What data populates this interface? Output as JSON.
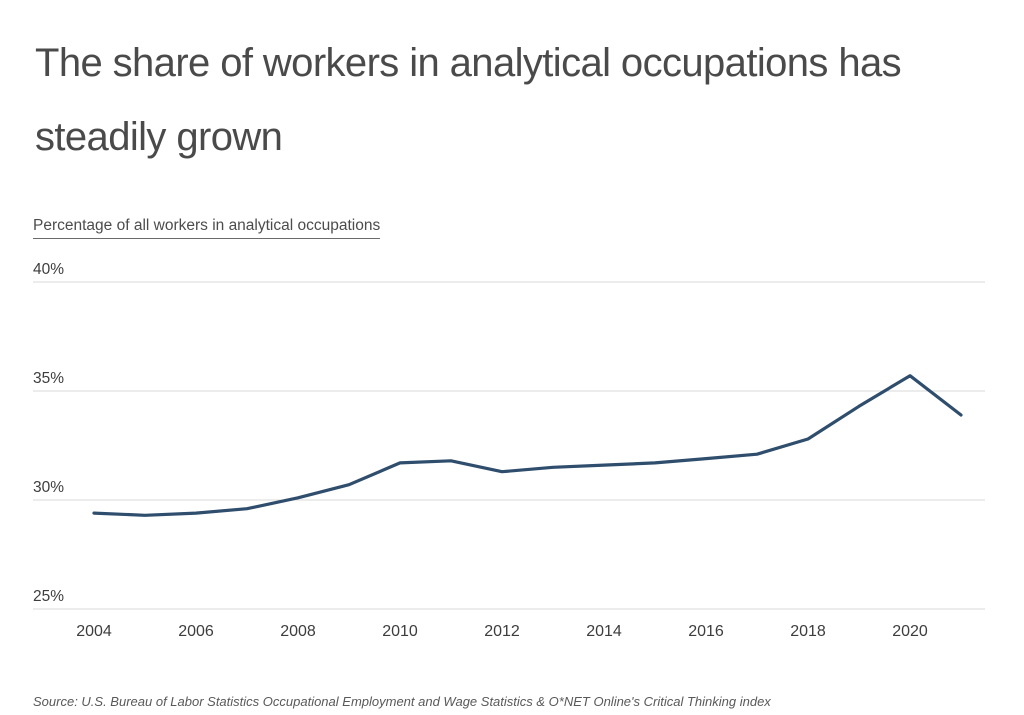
{
  "title": "The share of workers in analytical occupations has steadily grown",
  "subtitle": "Percentage of all workers in analytical occupations",
  "source_note": "Source: U.S. Bureau of Labor Statistics Occupational Employment and Wage Statistics & O*NET Online's Critical Thinking index",
  "colors": {
    "line": "#2f4d6c",
    "grid": "#d9d9d9",
    "title_text": "#4a4a4a",
    "axis_text": "#3d3d3d",
    "source_text": "#595959",
    "background": "#ffffff"
  },
  "chart_data": {
    "type": "line",
    "title": "The share of workers in analytical occupations has steadily grown",
    "ylabel": "Percentage of all workers in analytical occupations",
    "xlabel": "",
    "x": [
      2004,
      2005,
      2006,
      2007,
      2008,
      2009,
      2010,
      2011,
      2012,
      2013,
      2014,
      2015,
      2016,
      2017,
      2018,
      2019,
      2020,
      2021
    ],
    "values": [
      29.4,
      29.3,
      29.4,
      29.6,
      30.1,
      30.7,
      31.7,
      31.8,
      31.3,
      31.5,
      31.6,
      31.7,
      31.9,
      32.1,
      32.8,
      34.3,
      35.7,
      33.9
    ],
    "series_name": "Percentage of all workers in analytical occupations",
    "x_tick_labels": [
      "2004",
      "2006",
      "2008",
      "2010",
      "2012",
      "2014",
      "2016",
      "2018",
      "2020"
    ],
    "y_ticks": [
      {
        "label": "40%",
        "value": 40
      },
      {
        "label": "35%",
        "value": 35
      },
      {
        "label": "30%",
        "value": 30
      },
      {
        "label": "25%",
        "value": 25
      }
    ],
    "xlim": [
      2004,
      2021
    ],
    "ylim": [
      25,
      40
    ],
    "grid": "horizontal",
    "legend": "none",
    "line_color": "#2f4d6c"
  }
}
